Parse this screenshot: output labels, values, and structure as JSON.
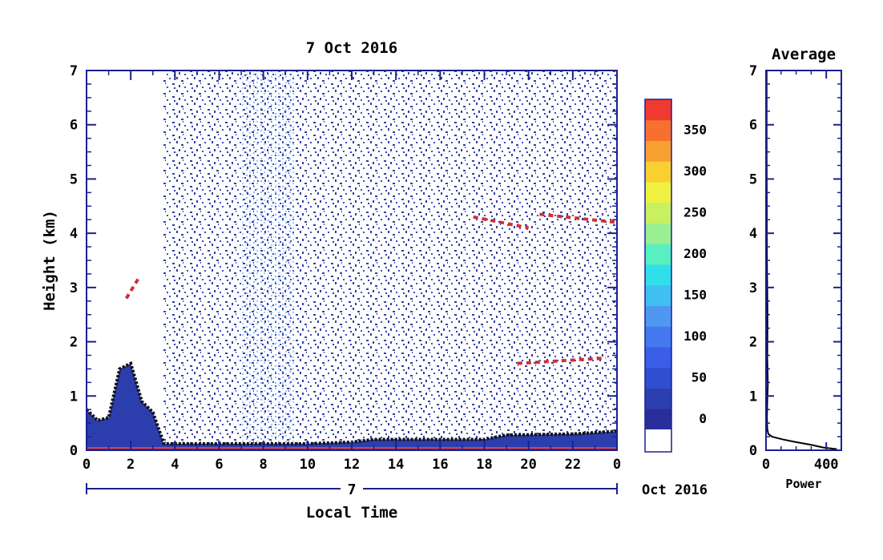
{
  "chart_data": [
    {
      "type": "heatmap",
      "title": "7 Oct 2016",
      "xlabel": "Local Time",
      "ylabel": "Height (km)",
      "xlim": [
        0,
        24
      ],
      "ylim": [
        0,
        7
      ],
      "x_ticks": [
        "0",
        "2",
        "4",
        "6",
        "8",
        "10",
        "12",
        "14",
        "16",
        "18",
        "20",
        "22",
        "0"
      ],
      "y_ticks": [
        "0",
        "1",
        "2",
        "3",
        "4",
        "5",
        "6",
        "7"
      ],
      "date_axis": {
        "day_label": "7",
        "month_label": "Oct 2016"
      },
      "colorbar": {
        "ticks": [
          "0",
          "50",
          "100",
          "150",
          "200",
          "250",
          "300",
          "350"
        ],
        "levels": [
          0,
          25,
          50,
          75,
          100,
          125,
          150,
          175,
          200,
          225,
          250,
          275,
          300,
          325,
          350,
          375
        ],
        "colors": [
          "#2a2e9a",
          "#2c3fb0",
          "#2f4ed0",
          "#3a5ee8",
          "#4579f0",
          "#4f98f2",
          "#40c0f0",
          "#30e0e8",
          "#58f0c0",
          "#9af090",
          "#c8f060",
          "#f0f040",
          "#f8d030",
          "#f8a030",
          "#f87030",
          "#f03a30"
        ]
      },
      "features": {
        "boundary_layer_top_km": [
          [
            0,
            0.75
          ],
          [
            0.5,
            0.55
          ],
          [
            1,
            0.6
          ],
          [
            1.5,
            1.5
          ],
          [
            2,
            1.6
          ],
          [
            2.5,
            0.9
          ],
          [
            3,
            0.7
          ],
          [
            3.5,
            0.12
          ],
          [
            6,
            0.12
          ],
          [
            10,
            0.12
          ],
          [
            12,
            0.15
          ],
          [
            13,
            0.2
          ],
          [
            14,
            0.2
          ],
          [
            16,
            0.2
          ],
          [
            18,
            0.2
          ],
          [
            19,
            0.28
          ],
          [
            22,
            0.3
          ],
          [
            24,
            0.35
          ]
        ],
        "cloud_layers": [
          {
            "x": [
              17.5,
              20.0
            ],
            "y": [
              4.3,
              4.1
            ]
          },
          {
            "x": [
              20.5,
              24.0
            ],
            "y": [
              4.35,
              4.2
            ]
          },
          {
            "x": [
              19.5,
              23.5
            ],
            "y": [
              1.6,
              1.7
            ]
          },
          {
            "x": [
              1.8,
              2.4
            ],
            "y": [
              2.8,
              3.2
            ]
          }
        ]
      }
    },
    {
      "type": "line",
      "title": "Average",
      "xlabel": "Power",
      "ylabel": "",
      "xlim": [
        0,
        500
      ],
      "ylim": [
        0,
        7
      ],
      "x_ticks": [
        "0",
        "400"
      ],
      "y_ticks": [
        "0",
        "1",
        "2",
        "3",
        "4",
        "5",
        "6",
        "7"
      ],
      "series": [
        {
          "x": [
            470,
            380,
            300,
            200,
            110,
            40,
            15,
            8,
            6,
            8,
            12,
            10,
            8,
            9,
            10,
            8,
            6,
            5,
            5,
            4,
            4,
            4
          ],
          "y": [
            0.02,
            0.05,
            0.1,
            0.15,
            0.2,
            0.25,
            0.3,
            0.4,
            0.6,
            0.9,
            1.2,
            1.5,
            1.7,
            2.0,
            2.5,
            3.0,
            3.5,
            4.0,
            4.5,
            5.5,
            6.5,
            7.0
          ]
        }
      ]
    }
  ]
}
